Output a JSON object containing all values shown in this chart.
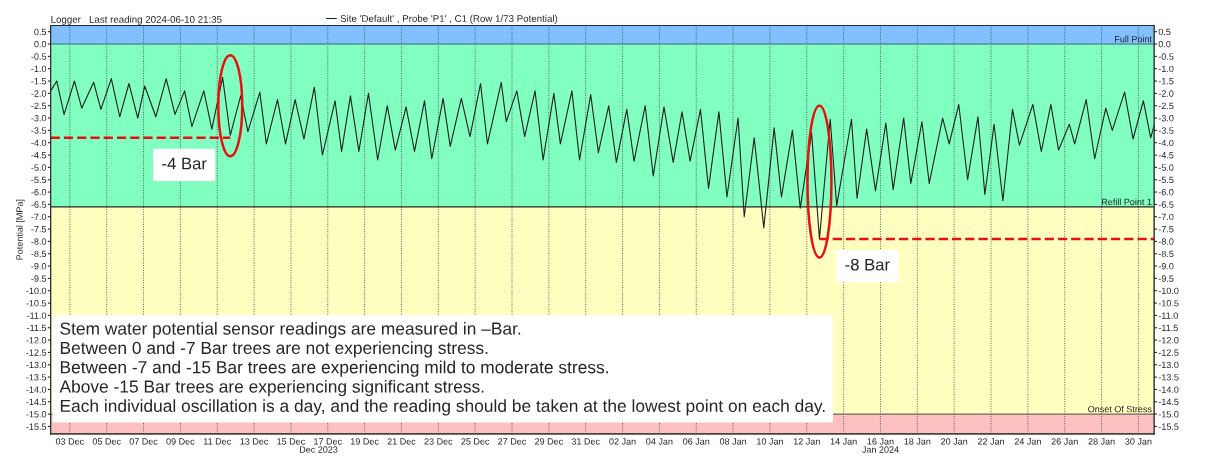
{
  "chart_data": {
    "type": "line",
    "title": "Logger   Last reading 2024-06-10 21:35",
    "ylabel": "Potential [MPa]",
    "legend": "top left",
    "grid": "x",
    "line_style": "solid",
    "xlim": [
      "2023-12-01T23:00",
      "2024-01-30T20:30"
    ],
    "ylim": [
      -15.8,
      0.75
    ],
    "y2lim": [
      -15.8,
      0.75
    ],
    "xticks": [
      {
        "value": "2023-12-03",
        "label": "03 Dec"
      },
      {
        "value": "2023-12-05",
        "label": "05 Dec"
      },
      {
        "value": "2023-12-07",
        "label": "07 Dec"
      },
      {
        "value": "2023-12-09",
        "label": "09 Dec"
      },
      {
        "value": "2023-12-11",
        "label": "11 Dec"
      },
      {
        "value": "2023-12-13",
        "label": "13 Dec"
      },
      {
        "value": "2023-12-15",
        "label": "15 Dec"
      },
      {
        "value": "2023-12-17",
        "label": "17 Dec"
      },
      {
        "value": "2023-12-19",
        "label": "19 Dec"
      },
      {
        "value": "2023-12-21",
        "label": "21 Dec"
      },
      {
        "value": "2023-12-23",
        "label": "23 Dec"
      },
      {
        "value": "2023-12-25",
        "label": "25 Dec"
      },
      {
        "value": "2023-12-27",
        "label": "27 Dec"
      },
      {
        "value": "2023-12-29",
        "label": "29 Dec"
      },
      {
        "value": "2023-12-31",
        "label": "31 Dec"
      },
      {
        "value": "2024-01-02",
        "label": "02 Jan"
      },
      {
        "value": "2024-01-04",
        "label": "04 Jan"
      },
      {
        "value": "2024-01-06",
        "label": "06 Jan"
      },
      {
        "value": "2024-01-08",
        "label": "08 Jan"
      },
      {
        "value": "2024-01-10",
        "label": "10 Jan"
      },
      {
        "value": "2024-01-12",
        "label": "12 Jan"
      },
      {
        "value": "2024-01-14",
        "label": "14 Jan"
      },
      {
        "value": "2024-01-16",
        "label": "16 Jan"
      },
      {
        "value": "2024-01-18",
        "label": "18 Jan"
      },
      {
        "value": "2024-01-20",
        "label": "20 Jan"
      },
      {
        "value": "2024-01-22",
        "label": "22 Jan"
      },
      {
        "value": "2024-01-24",
        "label": "24 Jan"
      },
      {
        "value": "2024-01-26",
        "label": "26 Jan"
      },
      {
        "value": "2024-01-28",
        "label": "28 Jan"
      },
      {
        "value": "2024-01-30",
        "label": "30 Jan"
      }
    ],
    "x2lim": [
      "2023-12-01T23:00",
      "2024-01-30T20:30"
    ],
    "x2ticks": [
      {
        "value": "2023-12-16T12:00",
        "label": "Dec 2023"
      },
      {
        "value": "2024-01-16",
        "label": "Jan 2024"
      }
    ],
    "yticks": [
      {
        "value": 0.5,
        "label": "0.5"
      },
      {
        "value": 0,
        "label": "0.0"
      },
      {
        "value": -0.5,
        "label": "-0.5"
      },
      {
        "value": -1,
        "label": "-1.0"
      },
      {
        "value": -1.5,
        "label": "-1.5"
      },
      {
        "value": -2,
        "label": "-2.0"
      },
      {
        "value": -2.5,
        "label": "-2.5"
      },
      {
        "value": -3,
        "label": "-3.0"
      },
      {
        "value": -3.5,
        "label": "-3.5"
      },
      {
        "value": -4,
        "label": "-4.0"
      },
      {
        "value": -4.5,
        "label": "-4.5"
      },
      {
        "value": -5,
        "label": "-5.0"
      },
      {
        "value": -5.5,
        "label": "-5.5"
      },
      {
        "value": -6,
        "label": "-6.0"
      },
      {
        "value": -6.5,
        "label": "-6.5"
      },
      {
        "value": -7,
        "label": "-7.0"
      },
      {
        "value": -7.5,
        "label": "-7.5"
      },
      {
        "value": -8,
        "label": "-8.0"
      },
      {
        "value": -8.5,
        "label": "-8.5"
      },
      {
        "value": -9,
        "label": "-9.0"
      },
      {
        "value": -9.5,
        "label": "-9.5"
      },
      {
        "value": -10,
        "label": "-10.0"
      },
      {
        "value": -10.5,
        "label": "-10.5"
      },
      {
        "value": -11,
        "label": "-11.0"
      },
      {
        "value": -11.5,
        "label": "-11.5"
      },
      {
        "value": -12,
        "label": "-12.0"
      },
      {
        "value": -12.5,
        "label": "-12.5"
      },
      {
        "value": -13,
        "label": "-13.0"
      },
      {
        "value": -13.5,
        "label": "-13.5"
      },
      {
        "value": -14,
        "label": "-14.0"
      },
      {
        "value": -14.5,
        "label": "-14.5"
      },
      {
        "value": -15,
        "label": "-15.0"
      },
      {
        "value": -15.5,
        "label": "-15.5"
      }
    ],
    "y2ticks": [
      {
        "value": 0.5,
        "label": "0.5"
      },
      {
        "value": 0,
        "label": "0.0"
      },
      {
        "value": -0.5,
        "label": "-0.5"
      },
      {
        "value": -1,
        "label": "-1.0"
      },
      {
        "value": -1.5,
        "label": "-1.5"
      },
      {
        "value": -2,
        "label": "-2.0"
      },
      {
        "value": -2.5,
        "label": "-2.5"
      },
      {
        "value": -3,
        "label": "-3.0"
      },
      {
        "value": -3.5,
        "label": "-3.5"
      },
      {
        "value": -4,
        "label": "-4.0"
      },
      {
        "value": -4.5,
        "label": "-4.5"
      },
      {
        "value": -5,
        "label": "-5.0"
      },
      {
        "value": -5.5,
        "label": "-5.5"
      },
      {
        "value": -6,
        "label": "-6.0"
      },
      {
        "value": -6.5,
        "label": "-6.5"
      },
      {
        "value": -7,
        "label": "-7.0"
      },
      {
        "value": -7.5,
        "label": "-7.5"
      },
      {
        "value": -8,
        "label": "-8.0"
      },
      {
        "value": -8.5,
        "label": "-8.5"
      },
      {
        "value": -9,
        "label": "-9.0"
      },
      {
        "value": -9.5,
        "label": "-9.5"
      },
      {
        "value": -10,
        "label": "-10.0"
      },
      {
        "value": -10.5,
        "label": "-10.5"
      },
      {
        "value": -11,
        "label": "-11.0"
      },
      {
        "value": -11.5,
        "label": "-11.5"
      },
      {
        "value": -12,
        "label": "-12.0"
      },
      {
        "value": -12.5,
        "label": "-12.5"
      },
      {
        "value": -13,
        "label": "-13.0"
      },
      {
        "value": -13.5,
        "label": "-13.5"
      },
      {
        "value": -14,
        "label": "-14.0"
      },
      {
        "value": -14.5,
        "label": "-14.5"
      },
      {
        "value": -15,
        "label": "-15.0"
      },
      {
        "value": -15.5,
        "label": "-15.5"
      }
    ],
    "bands": [
      {
        "axis": "y",
        "from": 0,
        "to": 0.75,
        "color": "#80c0ff"
      },
      {
        "axis": "y",
        "from": -6.6,
        "to": 0,
        "color": "#80ffc0"
      },
      {
        "axis": "y",
        "from": -15,
        "to": -6.6,
        "color": "#ffffc0"
      },
      {
        "axis": "y",
        "from": -15.8,
        "to": -15,
        "color": "#ffc0c0"
      }
    ],
    "ref_lines": [
      {
        "axis": "y",
        "value": 0,
        "label": "Full Point",
        "color": "#5a8a9a"
      },
      {
        "axis": "y",
        "value": -6.6,
        "label": "Refill Point 1",
        "color": "#1a2a1a"
      },
      {
        "axis": "y",
        "value": -15,
        "label": "Onset Of Stress",
        "color": "#6a6a5a"
      }
    ],
    "series": [
      {
        "name": "Site 'Default' , Probe 'P1' , C1 (Row 1/73 Potential)",
        "color": "#202020",
        "x": [
          "2023-12-01T23:00",
          "2023-12-02T07:00",
          "2023-12-02T16:30",
          "2023-12-03T06:00",
          "2023-12-03T15:30",
          "2023-12-04T07:00",
          "2023-12-04T16:30",
          "2023-12-05T06:00",
          "2023-12-05T17:00",
          "2023-12-06T05:00",
          "2023-12-06T16:30",
          "2023-12-07T01:30",
          "2023-12-07T16:00",
          "2023-12-08T05:30",
          "2023-12-08T17:00",
          "2023-12-09T05:30",
          "2023-12-09T15:00",
          "2023-12-10T06:30",
          "2023-12-10T17:00",
          "2023-12-11T07:00",
          "2023-12-11T17:00",
          "2023-12-12T06:30",
          "2023-12-12T16:00",
          "2023-12-13T07:30",
          "2023-12-13T16:00",
          "2023-12-14T06:30",
          "2023-12-14T17:00",
          "2023-12-15T05:30",
          "2023-12-15T17:00",
          "2023-12-16T06:30",
          "2023-12-16T17:00",
          "2023-12-17T09:30",
          "2023-12-17T18:00",
          "2023-12-18T05:30",
          "2023-12-18T16:30",
          "2023-12-19T05:00",
          "2023-12-19T17:00",
          "2023-12-20T05:30",
          "2023-12-20T16:00",
          "2023-12-21T06:00",
          "2023-12-21T17:00",
          "2023-12-22T06:00",
          "2023-12-22T15:30",
          "2023-12-23T06:15",
          "2023-12-23T15:30",
          "2023-12-24T06:00",
          "2023-12-24T17:15",
          "2023-12-25T07:00",
          "2023-12-25T16:00",
          "2023-12-26T10:00",
          "2023-12-26T16:30",
          "2023-12-27T06:15",
          "2023-12-27T16:30",
          "2023-12-28T06:00",
          "2023-12-28T16:30",
          "2023-12-29T06:30",
          "2023-12-29T15:00",
          "2023-12-30T06:00",
          "2023-12-30T16:00",
          "2023-12-31T06:30",
          "2023-12-31T16:30",
          "2024-01-01T06:00",
          "2024-01-01T16:00",
          "2024-01-02T05:30",
          "2024-01-02T15:00",
          "2024-01-03T05:30",
          "2024-01-03T16:00",
          "2024-01-04T06:00",
          "2024-01-04T18:00",
          "2024-01-05T05:30",
          "2024-01-05T16:00",
          "2024-01-06T05:30",
          "2024-01-06T16:00",
          "2024-01-07T05:30",
          "2024-01-07T16:00",
          "2024-01-08T06:30",
          "2024-01-08T14:30",
          "2024-01-09T03:30",
          "2024-01-09T16:00",
          "2024-01-10T05:30",
          "2024-01-10T15:00",
          "2024-01-11T05:15",
          "2024-01-11T15:30",
          "2024-01-12T06:15",
          "2024-01-12T16:30",
          "2024-01-13T06:30",
          "2024-01-13T15:00",
          "2024-01-14T10:15",
          "2024-01-14T17:30",
          "2024-01-15T06:00",
          "2024-01-15T17:30",
          "2024-01-16T07:00",
          "2024-01-16T16:30",
          "2024-01-17T06:15",
          "2024-01-17T15:30",
          "2024-01-18T06:00",
          "2024-01-18T15:30",
          "2024-01-19T09:00",
          "2024-01-19T17:30",
          "2024-01-20T06:00",
          "2024-01-20T17:30",
          "2024-01-21T07:00",
          "2024-01-21T16:00",
          "2024-01-22T04:00",
          "2024-01-22T15:30",
          "2024-01-23T04:00",
          "2024-01-23T13:00",
          "2024-01-24T06:30",
          "2024-01-24T17:30",
          "2024-01-25T06:00",
          "2024-01-25T16:00",
          "2024-01-26T06:00",
          "2024-01-26T13:00",
          "2024-01-27T04:00",
          "2024-01-27T15:00",
          "2024-01-28T05:30",
          "2024-01-28T14:00",
          "2024-01-29T06:00",
          "2024-01-29T17:00",
          "2024-01-30T06:30",
          "2024-01-30T16:00",
          "2024-01-30T20:30"
        ],
        "values": [
          -1.9,
          -1.5,
          -2.85,
          -1.5,
          -2.6,
          -1.55,
          -2.65,
          -1.4,
          -2.95,
          -1.6,
          -3.0,
          -1.7,
          -2.95,
          -1.4,
          -2.85,
          -1.9,
          -3.35,
          -1.9,
          -3.45,
          -1.35,
          -3.7,
          -2.1,
          -3.55,
          -1.95,
          -4.05,
          -2.25,
          -4.05,
          -2.25,
          -3.85,
          -1.75,
          -4.5,
          -2.3,
          -4.35,
          -2.1,
          -4.35,
          -2.0,
          -4.7,
          -2.5,
          -4.3,
          -2.55,
          -4.35,
          -2.3,
          -4.65,
          -2.2,
          -4.15,
          -2.2,
          -3.75,
          -1.6,
          -4.05,
          -1.55,
          -3.15,
          -1.9,
          -3.75,
          -1.9,
          -4.7,
          -2.0,
          -4.05,
          -1.9,
          -4.7,
          -2.05,
          -4.4,
          -2.5,
          -4.8,
          -2.65,
          -4.75,
          -2.5,
          -5.35,
          -2.55,
          -4.8,
          -2.75,
          -4.75,
          -2.65,
          -5.85,
          -2.75,
          -6.2,
          -3.0,
          -7.0,
          -3.8,
          -7.45,
          -3.4,
          -6.2,
          -3.5,
          -6.65,
          -3.6,
          -7.9,
          -3.05,
          -6.55,
          -3.05,
          -6.25,
          -3.45,
          -5.95,
          -3.2,
          -5.9,
          -3.0,
          -5.65,
          -3.15,
          -5.65,
          -3.0,
          -4.05,
          -2.45,
          -5.5,
          -2.95,
          -6.1,
          -3.25,
          -6.35,
          -2.65,
          -4.1,
          -2.45,
          -4.35,
          -2.45,
          -4.3,
          -3.25,
          -4.05,
          -2.25,
          -4.65,
          -2.6,
          -3.5,
          -1.95,
          -3.85,
          -2.3,
          -3.8,
          -3.3
        ]
      },
      {
        "type": "line",
        "line_style": "dashed",
        "color": "#e81010",
        "x": [
          "2023-12-01T23:00",
          "2023-12-11T17:00"
        ],
        "values": [
          -3.8,
          -3.8
        ]
      },
      {
        "type": "line",
        "line_style": "dashed",
        "color": "#e81010",
        "x": [
          "2024-01-12T16:30",
          "2024-01-30T20:30"
        ],
        "values": [
          -7.9,
          -7.9
        ]
      }
    ],
    "annotations": [
      {
        "text": "-4 Bar",
        "x": "2023-12-11T17:00",
        "y": -3.8
      },
      {
        "text": "-8 Bar",
        "x": "2024-01-12T16:30",
        "y": -7.9
      },
      "Stem water potential sensor readings are measured in –Bar.",
      "Between 0 and -7 Bar trees are not experiencing stress.",
      "Between -7 and -15 Bar trees are experiencing mild to moderate stress.",
      "Above -15 Bar trees are experiencing significant stress.",
      "Each individual oscillation is a day, and the reading should be taken at the lowest point on each day."
    ]
  }
}
